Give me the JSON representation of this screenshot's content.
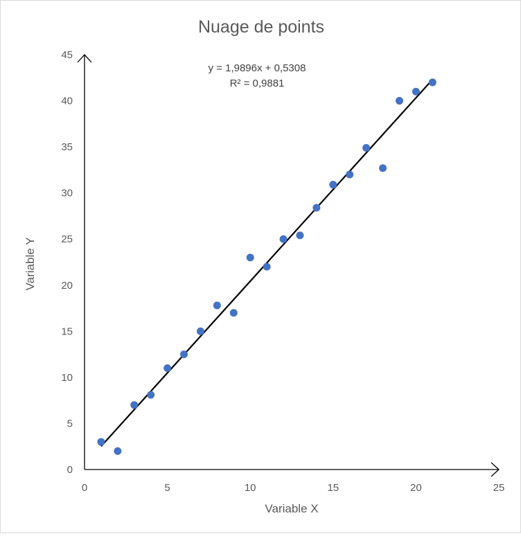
{
  "chart_data": {
    "type": "scatter",
    "title": "Nuage de points",
    "xlabel": "Variable X",
    "ylabel": "Variable Y",
    "xlim": [
      0,
      25
    ],
    "ylim": [
      0,
      45
    ],
    "xticks": [
      0,
      5,
      10,
      15,
      20,
      25
    ],
    "yticks": [
      0,
      5,
      10,
      15,
      20,
      25,
      30,
      35,
      40,
      45
    ],
    "grid": false,
    "point_color": "#4472C4",
    "trendline_color": "#000000",
    "series": [
      {
        "x": [
          1,
          2,
          3,
          4,
          5,
          6,
          7,
          8,
          9,
          10,
          11,
          12,
          13,
          14,
          15,
          16,
          17,
          18,
          19,
          20,
          21
        ],
        "y": [
          3,
          2,
          7,
          8.1,
          11,
          12.5,
          15,
          17.8,
          17,
          23,
          22,
          25,
          25.4,
          28.4,
          30.9,
          32,
          34.9,
          32.7,
          40,
          41,
          42
        ]
      }
    ],
    "trendline": {
      "slope": 1.9896,
      "intercept": 0.5308,
      "x_range": [
        1,
        21
      ],
      "equation_label": "y = 1,9896x + 0,5308",
      "r2_label": "R² = 0,9881"
    }
  }
}
